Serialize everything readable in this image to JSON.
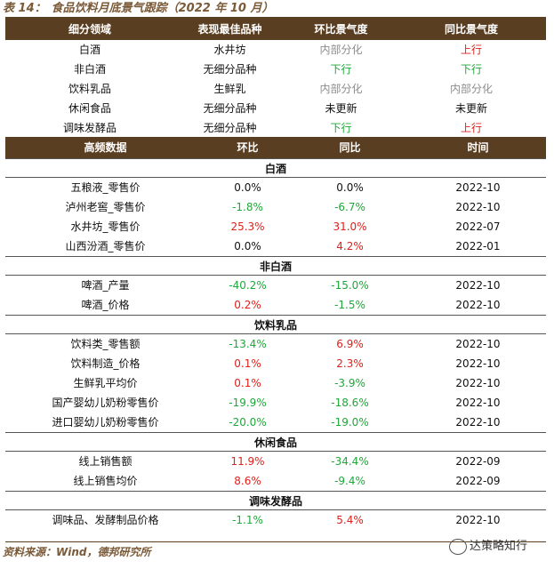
{
  "title": {
    "label": "表 14：",
    "text": "食品饮料月底景气跟踪（2022 年 10 月）"
  },
  "top_table": {
    "headers": [
      "细分领域",
      "表现最佳品种",
      "环比景气度",
      "同比景气度"
    ],
    "rows": [
      {
        "sector": "白酒",
        "best": "水井坊",
        "mom": "内部分化",
        "mom_color": "gray",
        "yoy": "上行",
        "yoy_color": "red"
      },
      {
        "sector": "非白酒",
        "best": "无细分品种",
        "mom": "下行",
        "mom_color": "green",
        "yoy": "下行",
        "yoy_color": "green"
      },
      {
        "sector": "饮料乳品",
        "best": "生鲜乳",
        "mom": "内部分化",
        "mom_color": "gray",
        "yoy": "内部分化",
        "yoy_color": "gray"
      },
      {
        "sector": "休闲食品",
        "best": "无细分品种",
        "mom": "未更新",
        "mom_color": "blk",
        "yoy": "未更新",
        "yoy_color": "blk"
      },
      {
        "sector": "调味发酵品",
        "best": "无细分品种",
        "mom": "下行",
        "mom_color": "green",
        "yoy": "上行",
        "yoy_color": "red"
      }
    ]
  },
  "freq_table": {
    "headers": [
      "高频数据",
      "环比",
      "同比",
      "时间"
    ],
    "sections": [
      {
        "name": "白酒",
        "rows": [
          {
            "item": "五粮液_零售价",
            "mom": "0.0%",
            "mom_color": "blk",
            "yoy": "0.0%",
            "yoy_color": "blk",
            "date": "2022-10"
          },
          {
            "item": "泸州老窖_零售价",
            "mom": "-1.8%",
            "mom_color": "green",
            "yoy": "-6.7%",
            "yoy_color": "green",
            "date": "2022-10"
          },
          {
            "item": "水井坊_零售价",
            "mom": "25.3%",
            "mom_color": "red",
            "yoy": "31.0%",
            "yoy_color": "red",
            "date": "2022-07"
          },
          {
            "item": "山西汾酒_零售价",
            "mom": "0.0%",
            "mom_color": "blk",
            "yoy": "4.2%",
            "yoy_color": "red",
            "date": "2022-01"
          }
        ]
      },
      {
        "name": "非白酒",
        "rows": [
          {
            "item": "啤酒_产量",
            "mom": "-40.2%",
            "mom_color": "green",
            "yoy": "-15.0%",
            "yoy_color": "green",
            "date": "2022-10"
          },
          {
            "item": "啤酒_价格",
            "mom": "0.2%",
            "mom_color": "red",
            "yoy": "-1.5%",
            "yoy_color": "green",
            "date": "2022-10"
          }
        ]
      },
      {
        "name": "饮料乳品",
        "rows": [
          {
            "item": "饮料类_零售额",
            "mom": "-13.4%",
            "mom_color": "green",
            "yoy": "6.9%",
            "yoy_color": "red",
            "date": "2022-10"
          },
          {
            "item": "饮料制造_价格",
            "mom": "0.1%",
            "mom_color": "red",
            "yoy": "2.3%",
            "yoy_color": "red",
            "date": "2022-10"
          },
          {
            "item": "生鲜乳平均价",
            "mom": "0.1%",
            "mom_color": "red",
            "yoy": "-3.9%",
            "yoy_color": "green",
            "date": "2022-10"
          },
          {
            "item": "国产婴幼儿奶粉零售价",
            "mom": "-19.9%",
            "mom_color": "green",
            "yoy": "-18.6%",
            "yoy_color": "green",
            "date": "2022-10"
          },
          {
            "item": "进口婴幼儿奶粉零售价",
            "mom": "-20.0%",
            "mom_color": "green",
            "yoy": "-19.0%",
            "yoy_color": "green",
            "date": "2022-10"
          }
        ]
      },
      {
        "name": "休闲食品",
        "rows": [
          {
            "item": "线上销售额",
            "mom": "11.9%",
            "mom_color": "red",
            "yoy": "-34.4%",
            "yoy_color": "green",
            "date": "2022-09"
          },
          {
            "item": "线上销售均价",
            "mom": "8.6%",
            "mom_color": "red",
            "yoy": "-9.4%",
            "yoy_color": "green",
            "date": "2022-09"
          }
        ]
      },
      {
        "name": "调味发酵品",
        "rows": [
          {
            "item": "调味品、发酵制品价格",
            "mom": "-1.1%",
            "mom_color": "green",
            "yoy": "5.4%",
            "yoy_color": "red",
            "date": "2022-10"
          }
        ]
      }
    ]
  },
  "source": "资料来源：Wind，德邦研究所",
  "watermark": "达策略知行"
}
